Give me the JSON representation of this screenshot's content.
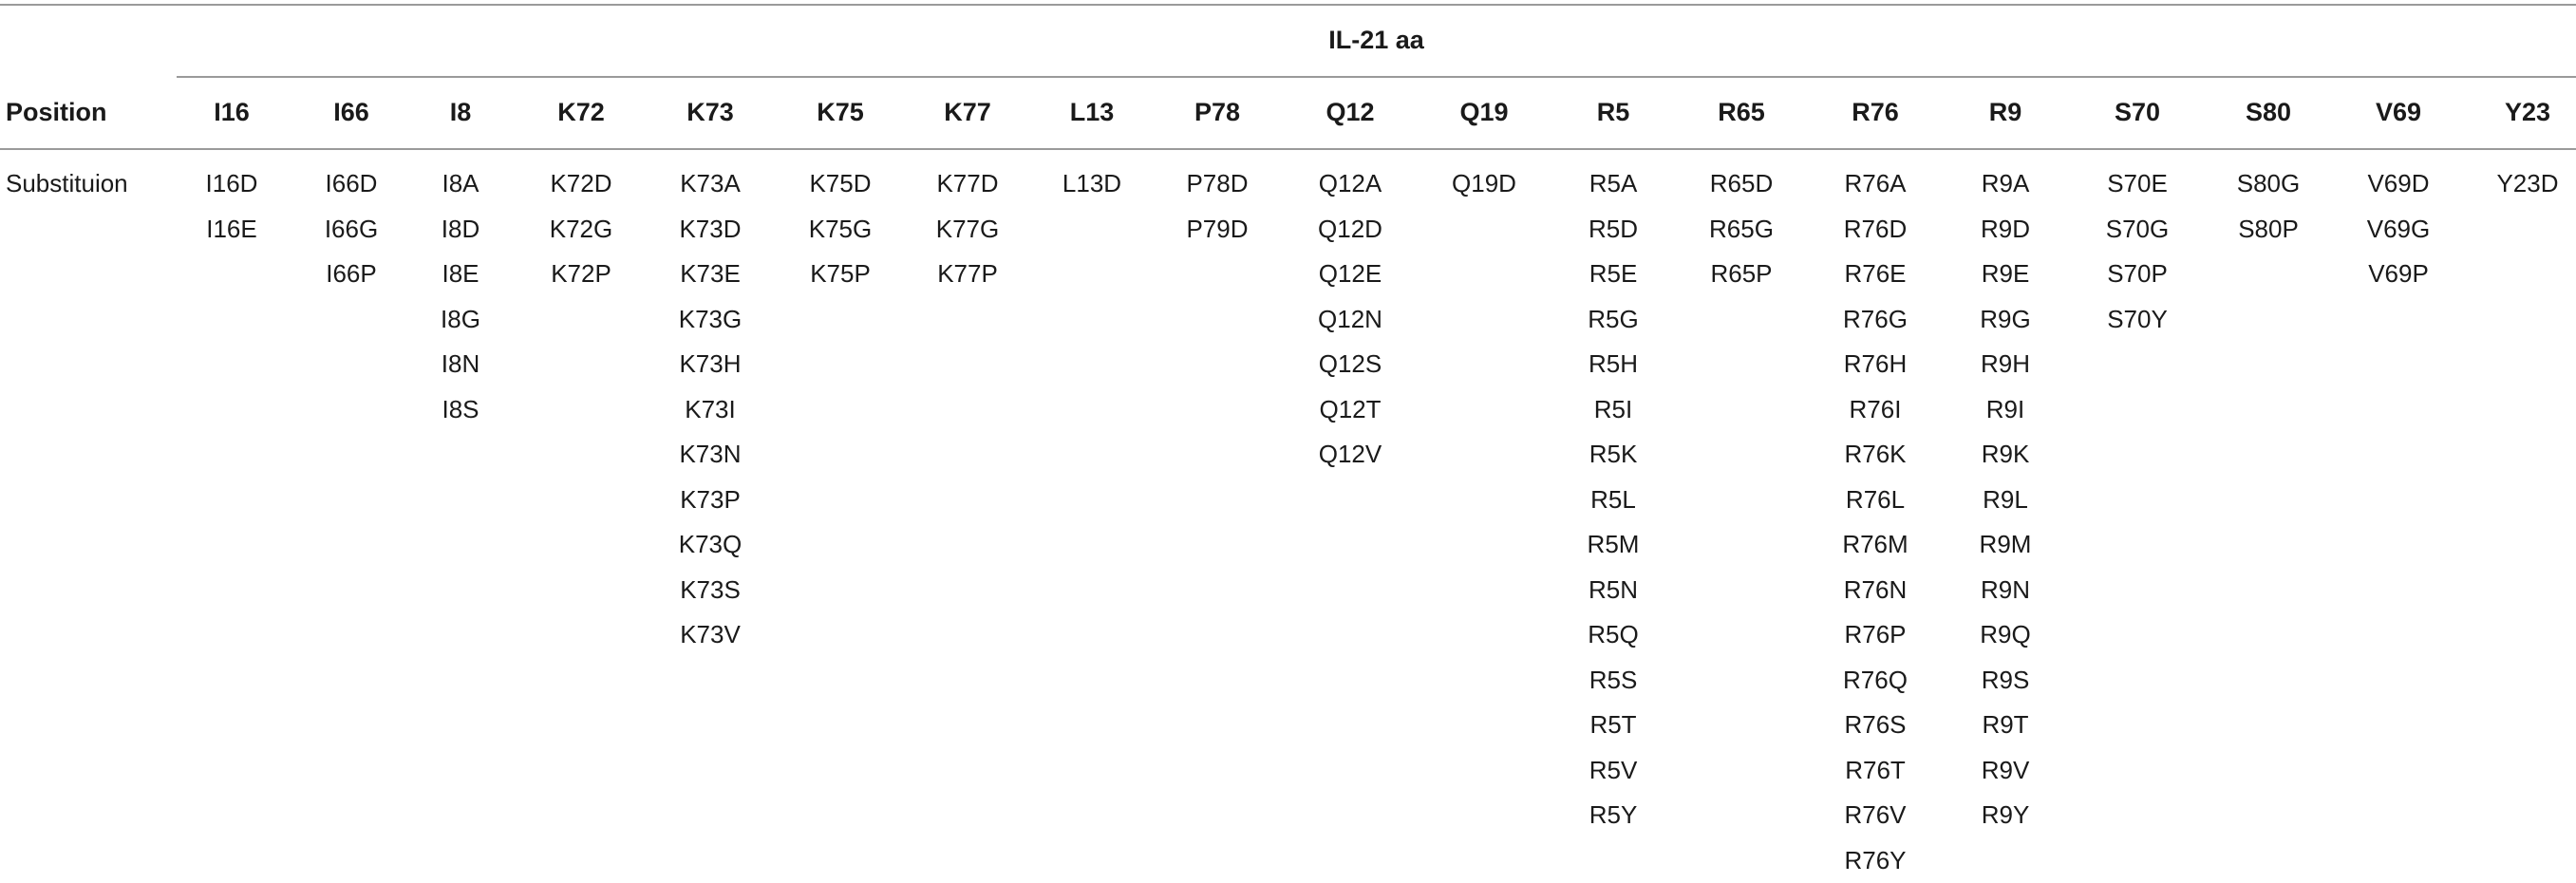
{
  "table": {
    "group_title": "IL-21 aa",
    "position_label": "Position",
    "row_label": "Substituion",
    "columns": [
      {
        "header": "I16",
        "values": [
          "I16D",
          "I16E"
        ]
      },
      {
        "header": "I66",
        "values": [
          "I66D",
          "I66G",
          "I66P"
        ]
      },
      {
        "header": "I8",
        "values": [
          "I8A",
          "I8D",
          "I8E",
          "I8G",
          "I8N",
          "I8S"
        ]
      },
      {
        "header": "K72",
        "values": [
          "K72D",
          "K72G",
          "K72P"
        ]
      },
      {
        "header": "K73",
        "values": [
          "K73A",
          "K73D",
          "K73E",
          "K73G",
          "K73H",
          "K73I",
          "K73N",
          "K73P",
          "K73Q",
          "K73S",
          "K73V"
        ]
      },
      {
        "header": "K75",
        "values": [
          "K75D",
          "K75G",
          "K75P"
        ]
      },
      {
        "header": "K77",
        "values": [
          "K77D",
          "K77G",
          "K77P"
        ]
      },
      {
        "header": "L13",
        "values": [
          "L13D"
        ]
      },
      {
        "header": "P78",
        "values": [
          "P78D",
          "P79D"
        ]
      },
      {
        "header": "Q12",
        "values": [
          "Q12A",
          "Q12D",
          "Q12E",
          "Q12N",
          "Q12S",
          "Q12T",
          "Q12V"
        ]
      },
      {
        "header": "Q19",
        "values": [
          "Q19D"
        ]
      },
      {
        "header": "R5",
        "values": [
          "R5A",
          "R5D",
          "R5E",
          "R5G",
          "R5H",
          "R5I",
          "R5K",
          "R5L",
          "R5M",
          "R5N",
          "R5Q",
          "R5S",
          "R5T",
          "R5V",
          "R5Y"
        ]
      },
      {
        "header": "R65",
        "values": [
          "R65D",
          "R65G",
          "R65P"
        ]
      },
      {
        "header": "R76",
        "values": [
          "R76A",
          "R76D",
          "R76E",
          "R76G",
          "R76H",
          "R76I",
          "R76K",
          "R76L",
          "R76M",
          "R76N",
          "R76P",
          "R76Q",
          "R76S",
          "R76T",
          "R76V",
          "R76Y"
        ]
      },
      {
        "header": "R9",
        "values": [
          "R9A",
          "R9D",
          "R9E",
          "R9G",
          "R9H",
          "R9I",
          "R9K",
          "R9L",
          "R9M",
          "R9N",
          "R9Q",
          "R9S",
          "R9T",
          "R9V",
          "R9Y"
        ]
      },
      {
        "header": "S70",
        "values": [
          "S70E",
          "S70G",
          "S70P",
          "S70Y"
        ]
      },
      {
        "header": "S80",
        "values": [
          "S80G",
          "S80P"
        ]
      },
      {
        "header": "V69",
        "values": [
          "V69D",
          "V69G",
          "V69P"
        ]
      },
      {
        "header": "Y23",
        "values": [
          "Y23D"
        ]
      }
    ]
  }
}
